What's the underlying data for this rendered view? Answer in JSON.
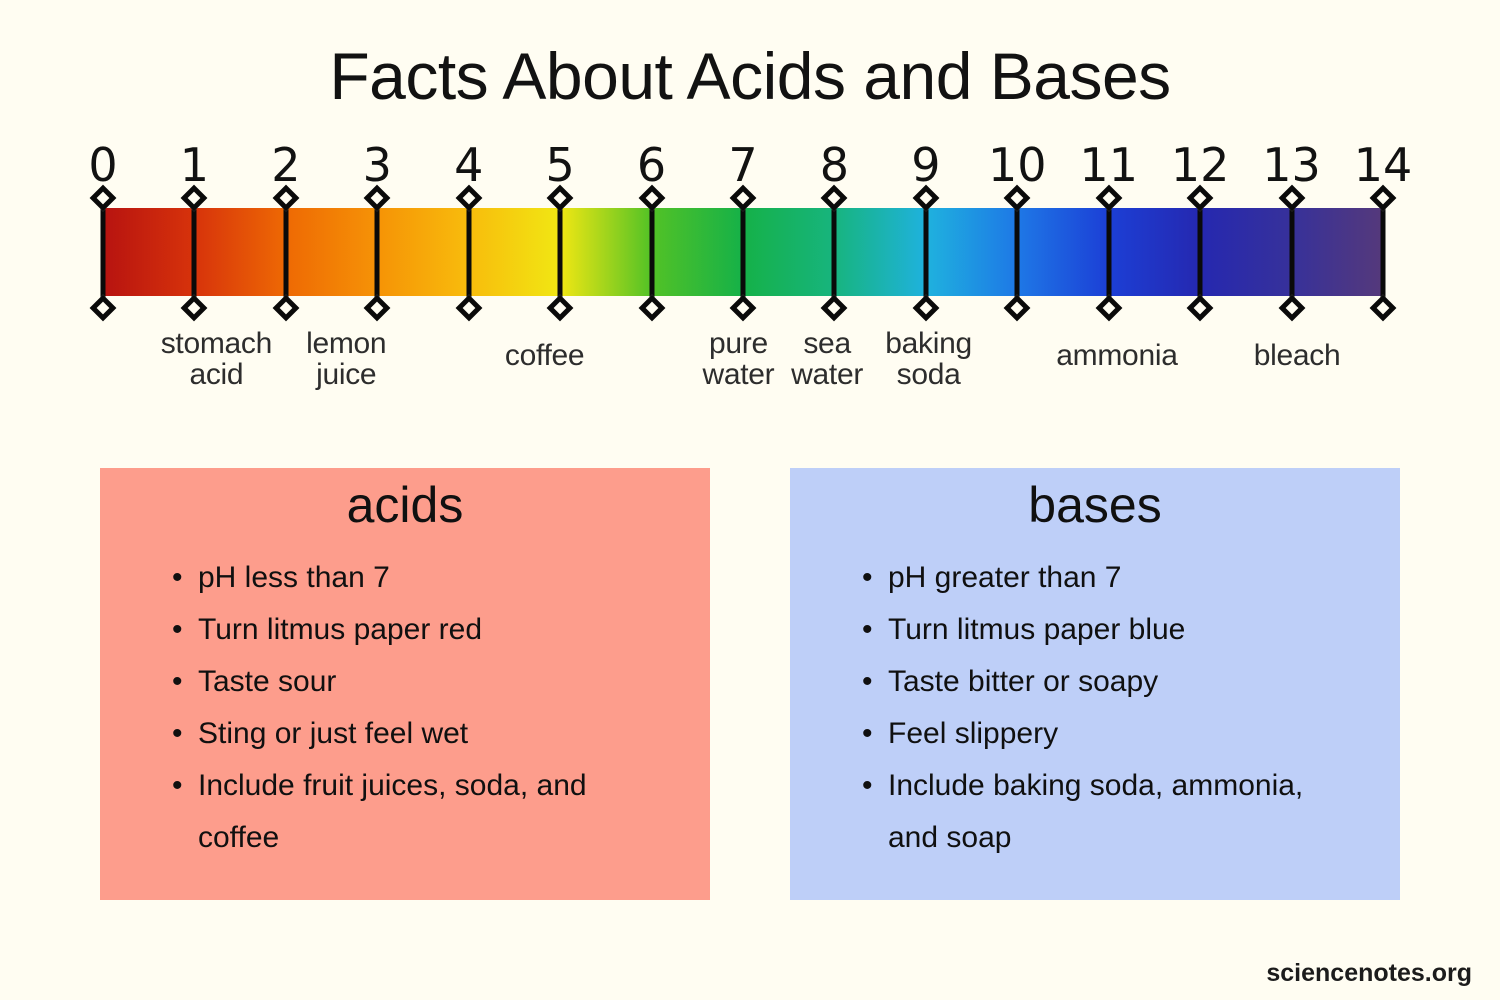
{
  "title": "Facts About Acids and Bases",
  "watermark": "sciencenotes.org",
  "colors": {
    "background": "#FFFDF2",
    "acids_box": "#FD9D8C",
    "bases_box": "#BECFF8",
    "tick": "#0A0A0A",
    "text": "#121212"
  },
  "ph_scale": {
    "min": 0,
    "max": 14,
    "ticks": [
      "0",
      "1",
      "2",
      "3",
      "4",
      "5",
      "6",
      "7",
      "8",
      "9",
      "10",
      "11",
      "12",
      "13",
      "14"
    ],
    "gradient_colors": [
      "#B71310",
      "#D7330B",
      "#EE6904",
      "#F69306",
      "#F8BC0C",
      "#F1E713",
      "#52C226",
      "#15B148",
      "#17B47E",
      "#1FB2DE",
      "#1E78E6",
      "#1C3FD6",
      "#2528B0",
      "#37319A",
      "#55397B"
    ],
    "substances": [
      {
        "label": "stomach acid",
        "lines": [
          "stomach",
          "acid"
        ],
        "ph": 1.24
      },
      {
        "label": "lemon juice",
        "lines": [
          "lemon",
          "juice"
        ],
        "ph": 2.66
      },
      {
        "label": "coffee",
        "lines": [
          "coffee"
        ],
        "ph": 4.83
      },
      {
        "label": "pure water",
        "lines": [
          "pure",
          "water"
        ],
        "ph": 6.95
      },
      {
        "label": "sea water",
        "lines": [
          "sea",
          "water"
        ],
        "ph": 7.92
      },
      {
        "label": "baking soda",
        "lines": [
          "baking",
          "soda"
        ],
        "ph": 9.03
      },
      {
        "label": "ammonia",
        "lines": [
          "ammonia"
        ],
        "ph": 11.09
      },
      {
        "label": "bleach",
        "lines": [
          "bleach"
        ],
        "ph": 13.06
      }
    ]
  },
  "acids": {
    "title": "acids",
    "bullets": [
      [
        "pH less than 7"
      ],
      [
        "Turn litmus paper red"
      ],
      [
        "Taste sour"
      ],
      [
        "Sting or just feel wet"
      ],
      [
        "Include fruit juices, soda, and",
        "coffee"
      ]
    ]
  },
  "bases": {
    "title": "bases",
    "bullets": [
      [
        "pH greater than 7"
      ],
      [
        "Turn litmus paper blue"
      ],
      [
        "Taste bitter or soapy"
      ],
      [
        "Feel slippery"
      ],
      [
        "Include baking soda, ammonia,",
        "and soap"
      ]
    ]
  }
}
